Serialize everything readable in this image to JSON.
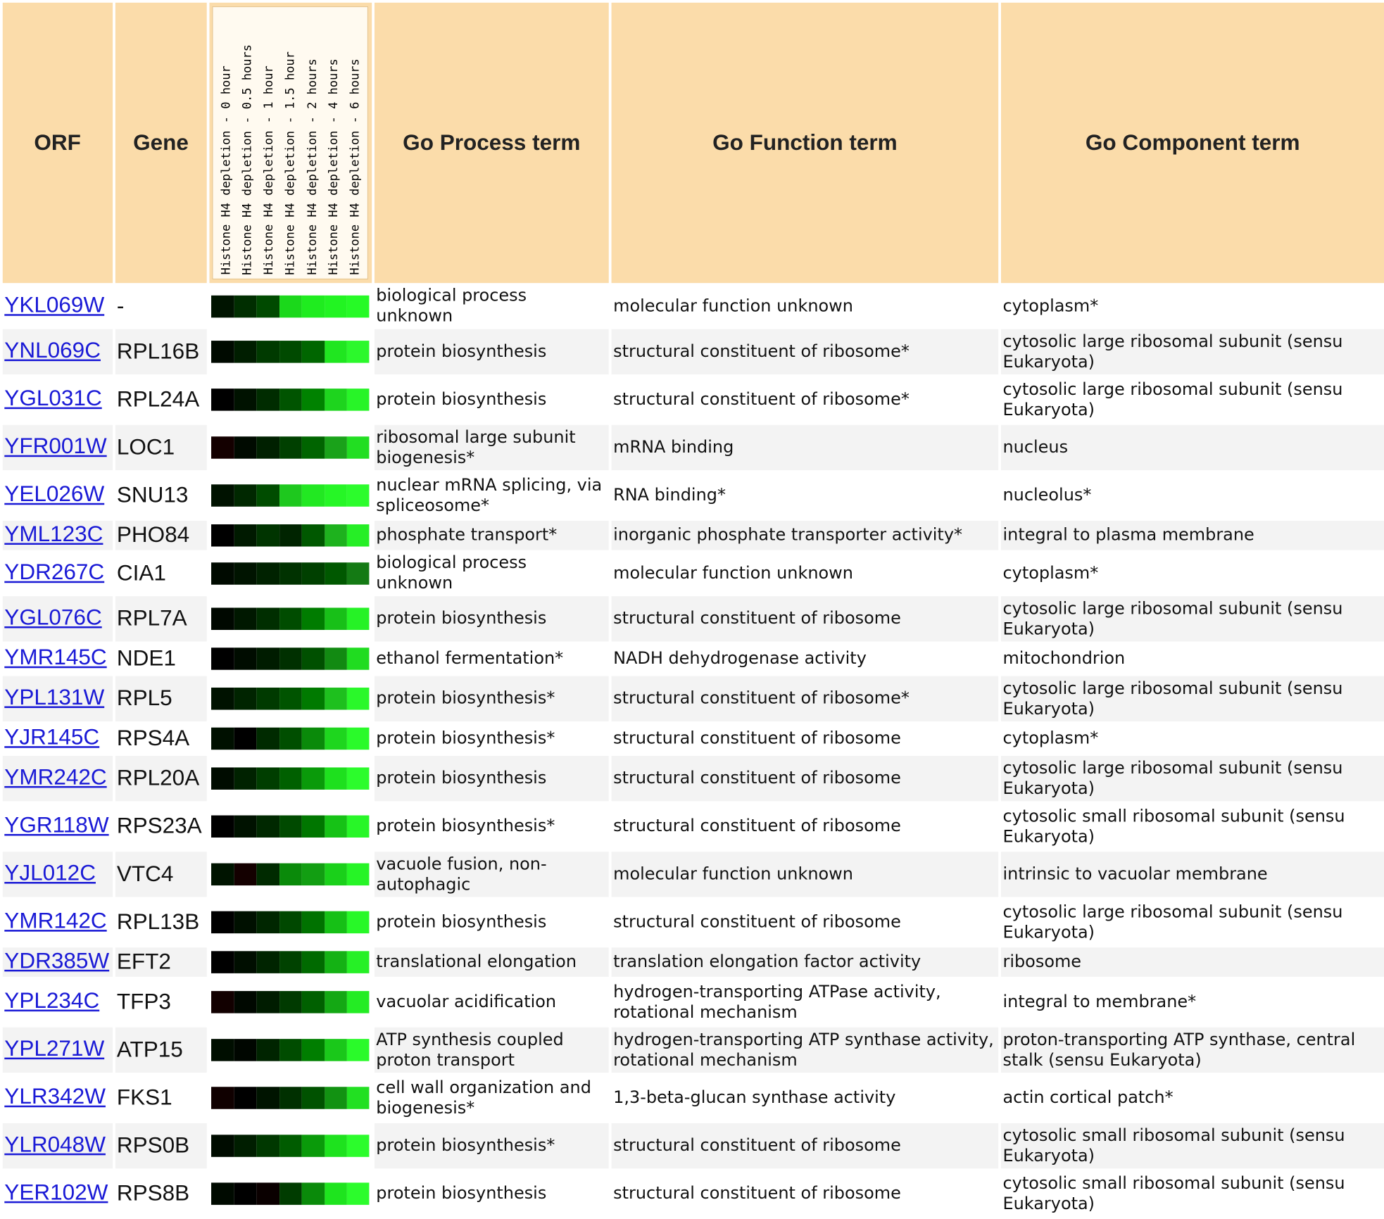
{
  "headers": {
    "orf": "ORF",
    "gene": "Gene",
    "timepoints": [
      "Histone H4 depletion - 0 hour",
      "Histone H4 depletion - 0.5 hours",
      "Histone H4 depletion - 1 hour",
      "Histone H4 depletion - 1.5 hour",
      "Histone H4 depletion - 2 hours",
      "Histone H4 depletion - 4 hours",
      "Histone H4 depletion - 6 hours"
    ],
    "process": "Go Process term",
    "function": "Go Function term",
    "component": "Go Component term"
  },
  "rows": [
    {
      "orf": "YKL069W",
      "gene": "-",
      "process": "biological process unknown",
      "function": "molecular function unknown",
      "component": "cytoplasm*",
      "heat": [
        "#001400",
        "#002e00",
        "#004a00",
        "#1bd81b",
        "#1fec1f",
        "#22f422",
        "#26fa26"
      ]
    },
    {
      "orf": "YNL069C",
      "gene": "RPL16B",
      "process": "protein biosynthesis",
      "function": "structural constituent of ribosome*",
      "component": "cytosolic large ribosomal subunit (sensu Eukaryota)",
      "heat": [
        "#000a00",
        "#001e00",
        "#003a00",
        "#004a00",
        "#006600",
        "#20e620",
        "#2cf82c"
      ]
    },
    {
      "orf": "YGL031C",
      "gene": "RPL24A",
      "process": "protein biosynthesis",
      "function": "structural constituent of ribosome*",
      "component": "cytosolic large ribosomal subunit (sensu Eukaryota)",
      "heat": [
        "#000000",
        "#001200",
        "#002c00",
        "#005400",
        "#008200",
        "#1ed41e",
        "#28f428"
      ]
    },
    {
      "orf": "YFR001W",
      "gene": "LOC1",
      "process": "ribosomal large subunit biogenesis*",
      "function": "mRNA binding",
      "component": "nucleus",
      "heat": [
        "#140000",
        "#000a00",
        "#002000",
        "#004000",
        "#006400",
        "#1aa21a",
        "#22de22"
      ]
    },
    {
      "orf": "YEL026W",
      "gene": "SNU13",
      "process": "nuclear mRNA splicing, via spliceosome*",
      "function": "RNA binding*",
      "component": "nucleolus*",
      "heat": [
        "#001200",
        "#002800",
        "#004c00",
        "#1ec81e",
        "#22e822",
        "#26f626",
        "#2cfc2c"
      ]
    },
    {
      "orf": "YML123C",
      "gene": "PHO84",
      "process": "phosphate transport*",
      "function": "inorganic phosphate transporter activity*",
      "component": "integral to plasma membrane",
      "heat": [
        "#000000",
        "#001a00",
        "#003400",
        "#002400",
        "#005800",
        "#1eb21e",
        "#26ee26"
      ]
    },
    {
      "orf": "YDR267C",
      "gene": "CIA1",
      "process": "biological process unknown",
      "function": "molecular function unknown",
      "component": "cytoplasm*",
      "heat": [
        "#000a00",
        "#001400",
        "#002200",
        "#003200",
        "#004000",
        "#005800",
        "#147a14"
      ]
    },
    {
      "orf": "YGL076C",
      "gene": "RPL7A",
      "process": "protein biosynthesis",
      "function": "structural constituent of ribosome",
      "component": "cytosolic large ribosomal subunit (sensu Eukaryota)",
      "heat": [
        "#000800",
        "#001800",
        "#002e00",
        "#004c00",
        "#007c00",
        "#18c018",
        "#26f226"
      ]
    },
    {
      "orf": "YMR145C",
      "gene": "NDE1",
      "process": "ethanol fermentation*",
      "function": "NADH dehydrogenase activity",
      "component": "mitochondrion",
      "heat": [
        "#000000",
        "#000c00",
        "#001c00",
        "#003000",
        "#005000",
        "#128a12",
        "#20dc20"
      ]
    },
    {
      "orf": "YPL131W",
      "gene": "RPL5",
      "process": "protein biosynthesis*",
      "function": "structural constituent of ribosome*",
      "component": "cytosolic large ribosomal subunit (sensu Eukaryota)",
      "heat": [
        "#001200",
        "#002400",
        "#003a00",
        "#005400",
        "#007a00",
        "#1ec01e",
        "#2af82a"
      ]
    },
    {
      "orf": "YJR145C",
      "gene": "RPS4A",
      "process": "protein biosynthesis*",
      "function": "structural constituent of ribosome",
      "component": "cytoplasm*",
      "heat": [
        "#001000",
        "#000000",
        "#002a00",
        "#004e00",
        "#0a8a0a",
        "#1ed61e",
        "#2afa2a"
      ]
    },
    {
      "orf": "YMR242C",
      "gene": "RPL20A",
      "process": "protein biosynthesis",
      "function": "structural constituent of ribosome",
      "component": "cytosolic large ribosomal subunit (sensu Eukaryota)",
      "heat": [
        "#000c00",
        "#002200",
        "#003e00",
        "#006000",
        "#0a9a0a",
        "#1ee01e",
        "#2cfc2c"
      ]
    },
    {
      "orf": "YGR118W",
      "gene": "RPS23A",
      "process": "protein biosynthesis*",
      "function": "structural constituent of ribosome",
      "component": "cytosolic small ribosomal subunit (sensu Eukaryota)",
      "heat": [
        "#000000",
        "#001200",
        "#002800",
        "#004a00",
        "#007600",
        "#16c216",
        "#28f628"
      ]
    },
    {
      "orf": "YJL012C",
      "gene": "VTC4",
      "process": "vacuole fusion, non-autophagic",
      "function": "molecular function unknown",
      "component": "intrinsic to vacuolar membrane",
      "heat": [
        "#001400",
        "#140000",
        "#002a00",
        "#0a8a0a",
        "#129e12",
        "#1ad01a",
        "#26f426"
      ]
    },
    {
      "orf": "YMR142C",
      "gene": "RPL13B",
      "process": "protein biosynthesis",
      "function": "structural constituent of ribosome",
      "component": "cytosolic large ribosomal subunit (sensu Eukaryota)",
      "heat": [
        "#000000",
        "#001000",
        "#002600",
        "#004800",
        "#007200",
        "#16c016",
        "#28f828"
      ]
    },
    {
      "orf": "YDR385W",
      "gene": "EFT2",
      "process": "translational elongation",
      "function": "translation elongation factor activity",
      "component": "ribosome",
      "heat": [
        "#000000",
        "#000e00",
        "#002400",
        "#004200",
        "#006a00",
        "#14b214",
        "#26f026"
      ]
    },
    {
      "orf": "YPL234C",
      "gene": "TFP3",
      "process": "vacuolar acidification",
      "function": "hydrogen-transporting ATPase activity, rotational mechanism",
      "component": "integral to membrane*",
      "heat": [
        "#120000",
        "#000800",
        "#001c00",
        "#003a00",
        "#006000",
        "#14a814",
        "#24ec24"
      ]
    },
    {
      "orf": "YPL271W",
      "gene": "ATP15",
      "process": "ATP synthesis coupled proton transport",
      "function": "hydrogen-transporting ATP synthase activity, rotational mechanism",
      "component": "proton-transporting ATP synthase, central stalk (sensu Eukaryota)",
      "heat": [
        "#000e00",
        "#000600",
        "#002400",
        "#004c00",
        "#007e00",
        "#1ac81a",
        "#2afa2a"
      ]
    },
    {
      "orf": "YLR342W",
      "gene": "FKS1",
      "process": "cell wall organization and biogenesis*",
      "function": "1,3-beta-glucan synthase activity",
      "component": "actin cortical patch*",
      "heat": [
        "#100000",
        "#000000",
        "#001400",
        "#003000",
        "#005200",
        "#129212",
        "#22e022"
      ]
    },
    {
      "orf": "YLR048W",
      "gene": "RPS0B",
      "process": "protein biosynthesis*",
      "function": "structural constituent of ribosome",
      "component": "cytosolic small ribosomal subunit (sensu Eukaryota)",
      "heat": [
        "#000c00",
        "#001e00",
        "#003800",
        "#005c00",
        "#0a9a0a",
        "#1ee21e",
        "#2cfc2c"
      ]
    },
    {
      "orf": "YER102W",
      "gene": "RPS8B",
      "process": "protein biosynthesis",
      "function": "structural constituent of ribosome",
      "component": "cytosolic small ribosomal subunit (sensu Eukaryota)",
      "heat": [
        "#000a00",
        "#000000",
        "#0a0000",
        "#003c00",
        "#0a8a0a",
        "#1ee41e",
        "#2cfc2c"
      ]
    }
  ]
}
